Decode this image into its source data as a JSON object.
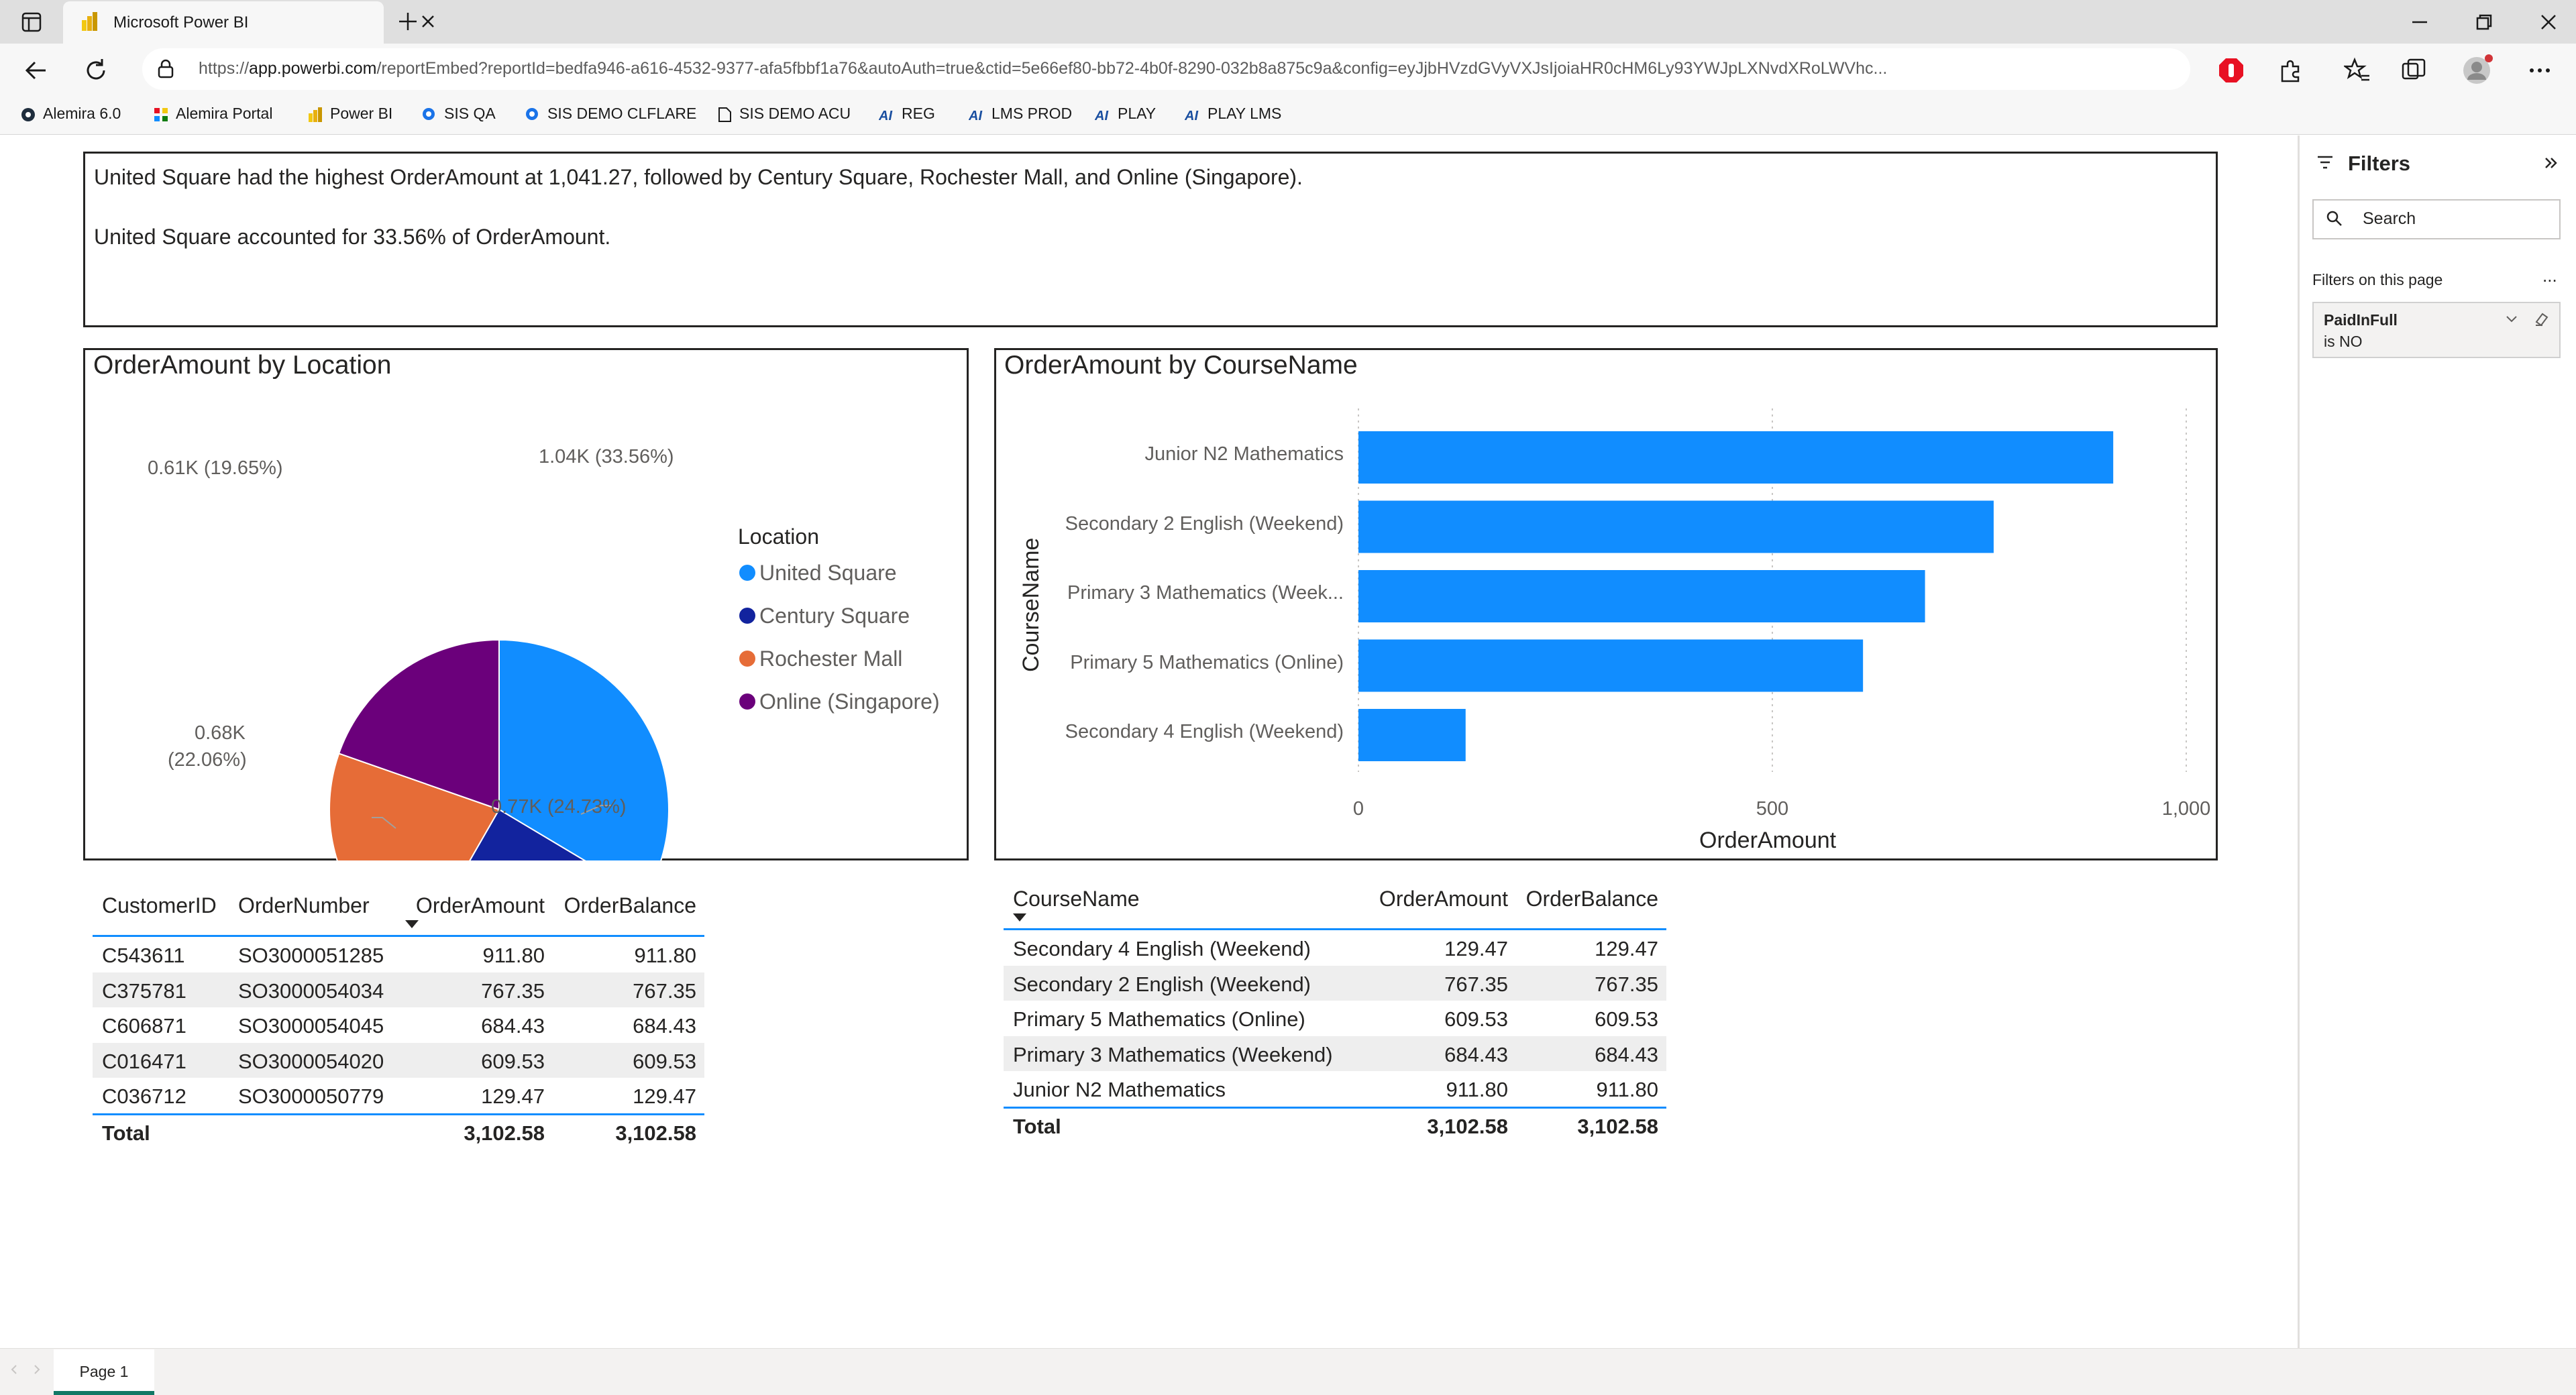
{
  "browser": {
    "tab_title": "Microsoft Power BI",
    "url_prefix": "https://",
    "url_domain": "app.powerbi.com",
    "url_rest": "/reportEmbed?reportId=bedfa946-a616-4532-9377-afa5fbbf1a76&autoAuth=true&ctid=5e66ef80-bb72-4b0f-8290-032b8a875c9a&config=eyJjbHVzdGVyVXJsIjoiaHR0cHM6Ly93YWJpLXNvdXRoLWVhc...",
    "bookmarks": [
      {
        "label": "Alemira 6.0",
        "icon": "alemira-icon"
      },
      {
        "label": "Alemira Portal",
        "icon": "alemira-portal-icon"
      },
      {
        "label": "Power BI",
        "icon": "powerbi-icon"
      },
      {
        "label": "SIS QA",
        "icon": "search-icon"
      },
      {
        "label": "SIS DEMO CLFLARE",
        "icon": "search-icon"
      },
      {
        "label": "SIS DEMO ACU",
        "icon": "page-icon"
      },
      {
        "label": "REG",
        "icon": "ai-icon"
      },
      {
        "label": "LMS PROD",
        "icon": "ai-icon"
      },
      {
        "label": "PLAY",
        "icon": "ai-icon"
      },
      {
        "label": "PLAY LMS",
        "icon": "ai-icon"
      }
    ],
    "accent_blue": "#1a73e8"
  },
  "summary": {
    "line1": "United Square had the highest OrderAmount at 1,041.27, followed by Century Square, Rochester Mall, and Online (Singapore).",
    "line2": "United Square accounted for 33.56% of OrderAmount."
  },
  "pie_chart": {
    "title": "OrderAmount by Location",
    "legend_title": "Location",
    "slice_labels": [
      "1.04K (33.56%)",
      "0.77K (24.73%)",
      "0.68K",
      "(22.06%)",
      "0.61K (19.65%)"
    ],
    "chart_data": {
      "type": "pie",
      "categories": [
        "United Square",
        "Century Square",
        "Rochester Mall",
        "Online (Singapore)"
      ],
      "values": [
        1041.27,
        767.35,
        684.43,
        609.53
      ],
      "percentages": [
        33.56,
        24.73,
        22.06,
        19.65
      ],
      "colors": [
        "#118dff",
        "#12239e",
        "#e66c37",
        "#6b007b"
      ]
    }
  },
  "bar_chart": {
    "title": "OrderAmount by CourseName",
    "xlabel": "OrderAmount",
    "ylabel": "CourseName",
    "category_labels": [
      "Junior N2 Mathematics",
      "Secondary 2 English (Weekend)",
      "Primary 3 Mathematics (Week...",
      "Primary 5 Mathematics (Online)",
      "Secondary 4 English (Weekend)"
    ],
    "tick_labels": [
      "0",
      "500",
      "1,000"
    ],
    "chart_data": {
      "type": "bar",
      "orientation": "horizontal",
      "categories": [
        "Junior N2 Mathematics",
        "Secondary 2 English (Weekend)",
        "Primary 3 Mathematics (Weekend)",
        "Primary 5 Mathematics (Online)",
        "Secondary 4 English (Weekend)"
      ],
      "values": [
        911.8,
        767.35,
        684.43,
        609.53,
        129.47
      ],
      "xlim": [
        0,
        1000
      ],
      "xticks": [
        0,
        500,
        1000
      ],
      "color": "#118dff",
      "grid": true
    }
  },
  "customer_table": {
    "headers": [
      "CustomerID",
      "OrderNumber",
      "OrderAmount",
      "OrderBalance"
    ],
    "rows": [
      [
        "C543611",
        "SO3000051285",
        "911.80",
        "911.80"
      ],
      [
        "C375781",
        "SO3000054034",
        "767.35",
        "767.35"
      ],
      [
        "C606871",
        "SO3000054045",
        "684.43",
        "684.43"
      ],
      [
        "C016471",
        "SO3000054020",
        "609.53",
        "609.53"
      ],
      [
        "C036712",
        "SO3000050779",
        "129.47",
        "129.47"
      ]
    ],
    "total_label": "Total",
    "total_amount": "3,102.58",
    "total_balance": "3,102.58"
  },
  "course_table": {
    "headers": [
      "CourseName",
      "OrderAmount",
      "OrderBalance"
    ],
    "rows": [
      [
        "Secondary 4 English (Weekend)",
        "129.47",
        "129.47"
      ],
      [
        "Secondary 2 English (Weekend)",
        "767.35",
        "767.35"
      ],
      [
        "Primary 5 Mathematics (Online)",
        "609.53",
        "609.53"
      ],
      [
        "Primary 3 Mathematics (Weekend)",
        "684.43",
        "684.43"
      ],
      [
        "Junior N2 Mathematics",
        "911.80",
        "911.80"
      ]
    ],
    "total_label": "Total",
    "total_amount": "3,102.58",
    "total_balance": "3,102.58"
  },
  "filters_pane": {
    "title": "Filters",
    "search_placeholder": "Search",
    "section_label": "Filters on this page",
    "more_label": "...",
    "filter_name": "PaidInFull",
    "filter_value": "is NO"
  },
  "pages": {
    "tabs": [
      "Page 1"
    ]
  }
}
